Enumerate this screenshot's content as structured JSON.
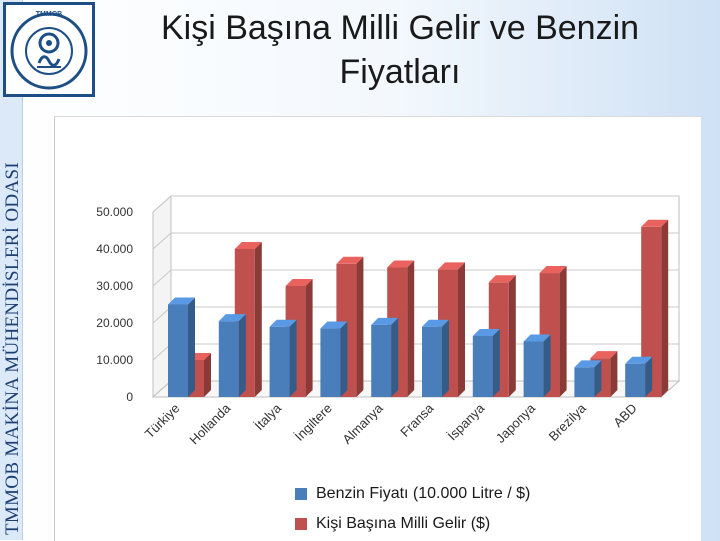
{
  "slide": {
    "title": "Kişi Başına Milli Gelir ve Benzin Fiyatları",
    "side_text": "TMMOB MAKİNA MÜHENDİSLERİ ODASI",
    "logo": {
      "top_text": "TMMOB",
      "ring_text": "MAKİNA MÜHENDİSLERİ ODASI",
      "icon": "gear-emblem-icon"
    }
  },
  "colors": {
    "blue_series": "#4a7ebb",
    "red_series": "#c0504d",
    "logo_blue": "#1d4f86"
  },
  "chart_data": {
    "type": "bar",
    "style": "3d-clustered-column",
    "categories": [
      "Türkiye",
      "Hollanda",
      "İtalya",
      "İngiltere",
      "Almanya",
      "Fransa",
      "İspanya",
      "Japonya",
      "Brezilya",
      "ABD"
    ],
    "series": [
      {
        "name": "Benzin Fiyatı (10.000 Litre / $)",
        "values": [
          25000,
          20500,
          19000,
          18500,
          19500,
          19000,
          16500,
          15000,
          8000,
          9000
        ],
        "color": "#4a7ebb"
      },
      {
        "name": "Kişi Başına Milli Gelir ($)",
        "values": [
          10000,
          40000,
          30000,
          36000,
          35000,
          34500,
          31000,
          33500,
          10500,
          46000
        ],
        "color": "#c0504d"
      }
    ],
    "yticks": [
      "0",
      "10.000",
      "20.000",
      "30.000",
      "40.000",
      "50.000"
    ],
    "ylim": [
      0,
      50000
    ],
    "grid": true,
    "legend": "bottom"
  }
}
